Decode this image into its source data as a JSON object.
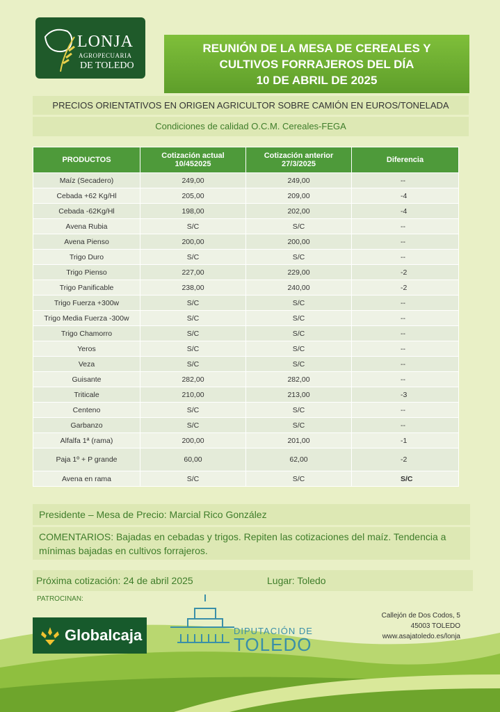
{
  "header": {
    "logo": [
      "LONJA",
      "AGROPECUARIA",
      "DE TOLEDO"
    ],
    "title": [
      "REUNIÓN DE LA MESA DE CEREALES Y",
      "CULTIVOS FORRAJEROS DEL DÍA",
      "10 DE ABRIL DE 2025"
    ],
    "subtitle": "PRECIOS ORIENTATIVOS EN ORIGEN AGRICULTOR SOBRE CAMIÓN EN EUROS/TONELADA",
    "conditions": "Condiciones de calidad O.C.M. Cereales-FEGA"
  },
  "table": {
    "columns": [
      [
        "PRODUCTOS"
      ],
      [
        "Cotización actual",
        "10/452025"
      ],
      [
        "Cotización anterior",
        "27/3/2025"
      ],
      [
        "Diferencia"
      ]
    ],
    "rows": [
      [
        "Maíz (Secadero)",
        "249,00",
        "249,00",
        "--"
      ],
      [
        "Cebada +62 Kg/Hl",
        "205,00",
        "209,00",
        "-4"
      ],
      [
        "Cebada -62Kg/Hl",
        "198,00",
        "202,00",
        "-4"
      ],
      [
        "Avena Rubia",
        "S/C",
        "S/C",
        "--"
      ],
      [
        "Avena Pienso",
        "200,00",
        "200,00",
        "--"
      ],
      [
        "Trigo Duro",
        "S/C",
        "S/C",
        "--"
      ],
      [
        "Trigo Pienso",
        "227,00",
        "229,00",
        "-2"
      ],
      [
        "Trigo Panificable",
        "238,00",
        "240,00",
        "-2"
      ],
      [
        "Trigo Fuerza +300w",
        "S/C",
        "S/C",
        "--"
      ],
      [
        "Trigo Media Fuerza -300w",
        "S/C",
        "S/C",
        "--"
      ],
      [
        "Trigo Chamorro",
        "S/C",
        "S/C",
        "--"
      ],
      [
        "Yeros",
        "S/C",
        "S/C",
        "--"
      ],
      [
        "Veza",
        "S/C",
        "S/C",
        "--"
      ],
      [
        "Guisante",
        "282,00",
        "282,00",
        "--"
      ],
      [
        "Triticale",
        "210,00",
        "213,00",
        "-3"
      ],
      [
        "Centeno",
        "S/C",
        "S/C",
        "--"
      ],
      [
        "Garbanzo",
        "S/C",
        "S/C",
        "--"
      ],
      [
        "Alfalfa  1ª (rama)",
        "200,00",
        "201,00",
        "-1"
      ],
      [
        "Paja 1º + P grande",
        "60,00",
        "62,00",
        "-2"
      ],
      [
        "Avena en rama",
        "S/C",
        "S/C",
        "S/C"
      ]
    ]
  },
  "footer": {
    "president": "Presidente – Mesa de Precio: Marcial Rico González",
    "comments": "COMENTARIOS: Bajadas en cebadas y trigos. Repiten las cotizaciones del maíz. Tendencia a mínimas bajadas en cultivos forrajeros.",
    "next_quote": "Próxima cotización: 24 de abril 2025",
    "place": "Lugar: Toledo",
    "sponsors_label": "PATROCINAN:",
    "sponsor1": "Globalcaja",
    "sponsor2": [
      "DIPUTACIÓN DE",
      "TOLEDO"
    ],
    "address": [
      "Callejón de Dos Codos, 5",
      "45003 TOLEDO",
      "www.asajatoledo.es/lonja"
    ]
  }
}
